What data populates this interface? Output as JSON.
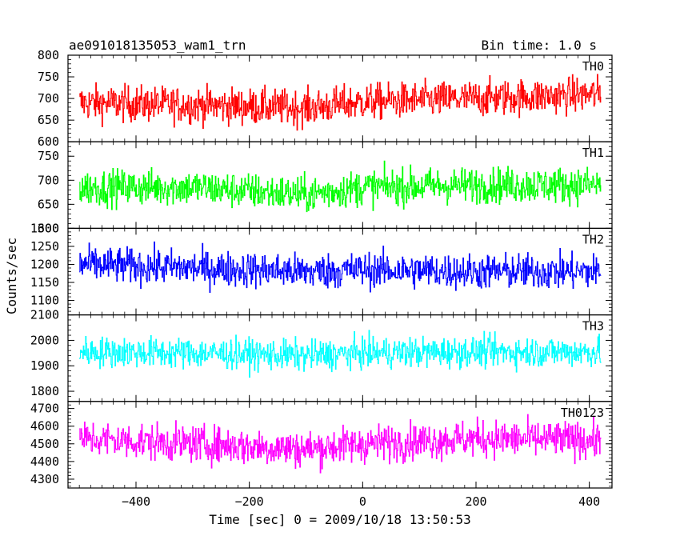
{
  "header": {
    "title": "ae091018135053_wam1_trn",
    "bin_time": "Bin time: 1.0 s"
  },
  "chart_data": {
    "type": "line",
    "ylabel": "Counts/sec",
    "xlabel": "Time [sec] 0 = 2009/10/18 13:50:53",
    "xlim": [
      -520,
      440
    ],
    "x_ticks": [
      -400,
      -200,
      0,
      200,
      400
    ],
    "x_tick_labels": [
      "−400",
      "−200",
      "0",
      "200",
      "400"
    ],
    "x_range": [
      -500,
      420
    ],
    "bin_time_s": 1.0,
    "panels": [
      {
        "name": "TH0",
        "color": "#ff0000",
        "ylim": [
          600,
          800
        ],
        "y_ticks": [
          600,
          650,
          700,
          750,
          800
        ],
        "y_tick_labels": [
          "600",
          "650",
          "700",
          "750",
          "800"
        ],
        "trend": [
          [
            -500,
            690
          ],
          [
            -300,
            685
          ],
          [
            -100,
            678
          ],
          [
            0,
            692
          ],
          [
            200,
            700
          ],
          [
            420,
            710
          ]
        ],
        "spread": 38
      },
      {
        "name": "TH1",
        "color": "#00ff00",
        "ylim": [
          600,
          780
        ],
        "y_ticks": [
          600,
          650,
          700,
          750
        ],
        "y_tick_labels": [
          "600",
          "650",
          "700",
          "750"
        ],
        "trend": [
          [
            -500,
            685
          ],
          [
            -300,
            685
          ],
          [
            -100,
            670
          ],
          [
            0,
            685
          ],
          [
            200,
            690
          ],
          [
            420,
            690
          ]
        ],
        "spread": 34
      },
      {
        "name": "TH2",
        "color": "#0000ff",
        "ylim": [
          1060,
          1300
        ],
        "y_ticks": [
          1100,
          1150,
          1200,
          1250,
          1300
        ],
        "y_tick_labels": [
          "1100",
          "1150",
          "1200",
          "1250",
          "1300"
        ],
        "trend": [
          [
            -500,
            1200
          ],
          [
            -300,
            1190
          ],
          [
            -100,
            1180
          ],
          [
            0,
            1185
          ],
          [
            200,
            1180
          ],
          [
            420,
            1180
          ]
        ],
        "spread": 45
      },
      {
        "name": "TH3",
        "color": "#00ffff",
        "ylim": [
          1760,
          2100
        ],
        "y_ticks": [
          1800,
          1900,
          2000,
          2100
        ],
        "y_tick_labels": [
          "1800",
          "1900",
          "2000",
          "2100"
        ],
        "trend": [
          [
            -500,
            1955
          ],
          [
            -300,
            1950
          ],
          [
            -100,
            1940
          ],
          [
            0,
            1950
          ],
          [
            200,
            1955
          ],
          [
            420,
            1955
          ]
        ],
        "spread": 55
      },
      {
        "name": "TH0123",
        "color": "#ff00ff",
        "ylim": [
          4250,
          4740
        ],
        "y_ticks": [
          4300,
          4400,
          4500,
          4600,
          4700
        ],
        "y_tick_labels": [
          "4300",
          "4400",
          "4500",
          "4600",
          "4700"
        ],
        "trend": [
          [
            -500,
            4530
          ],
          [
            -300,
            4500
          ],
          [
            -100,
            4470
          ],
          [
            0,
            4500
          ],
          [
            200,
            4530
          ],
          [
            420,
            4520
          ]
        ],
        "spread": 95
      }
    ]
  }
}
